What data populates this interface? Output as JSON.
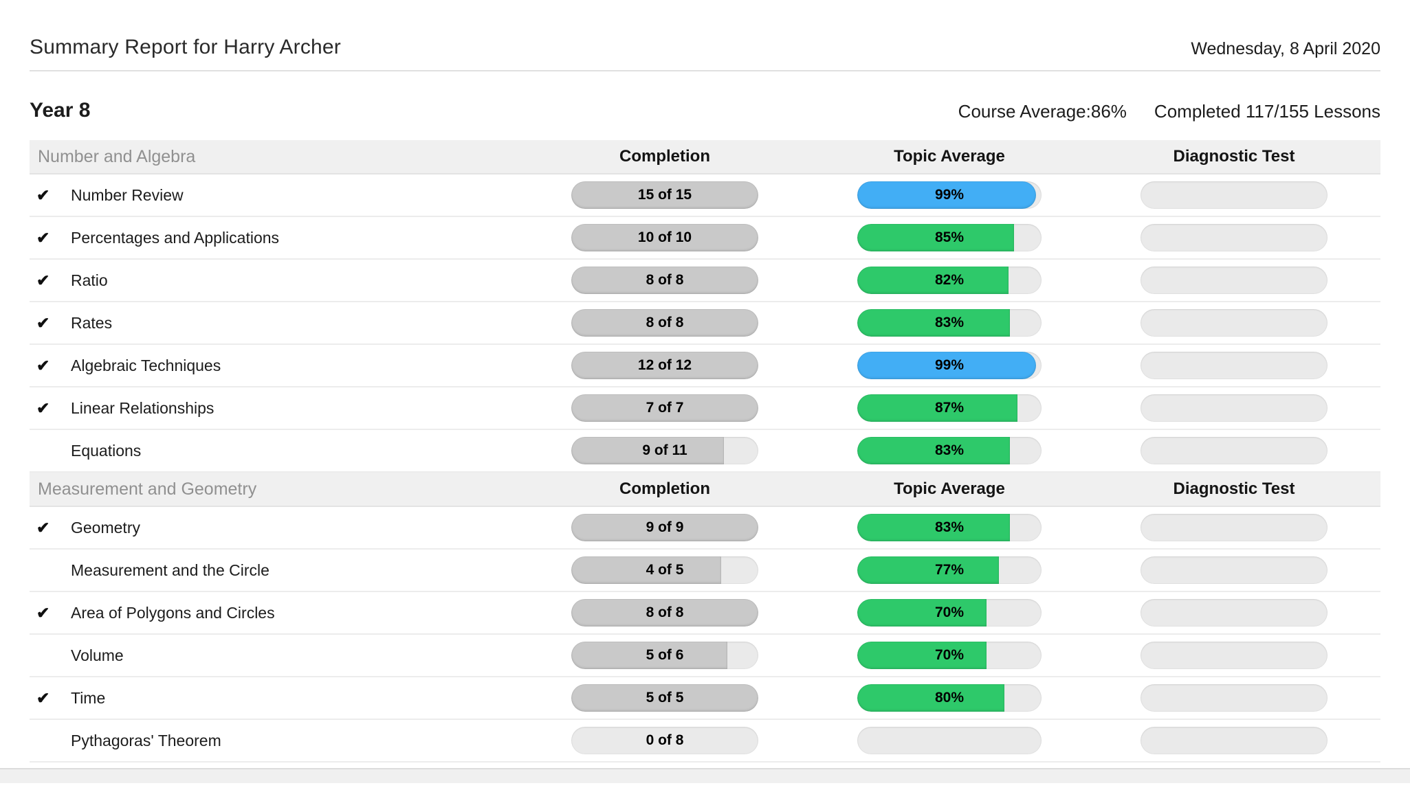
{
  "header": {
    "title": "Summary Report for Harry Archer",
    "date": "Wednesday, 8 April 2020"
  },
  "course": {
    "name": "Year 8",
    "average_label": "Course Average:",
    "average_value": "86%",
    "completed": "Completed 117/155 Lessons"
  },
  "columns": {
    "completion": "Completion",
    "topic_average": "Topic Average",
    "diagnostic_test": "Diagnostic Test"
  },
  "icons": {
    "check": "✔"
  },
  "colors": {
    "green": "#2ec96a",
    "blue": "#42aef5",
    "completion_fill": "#c9c9c9",
    "pill_track": "#eaeaea",
    "section_bg": "#f0f0f0"
  },
  "sections": [
    {
      "name": "Number and Algebra",
      "rows": [
        {
          "topic": "Number Review",
          "completed": true,
          "completion": "15 of 15",
          "completion_pct": 100,
          "average": "99%",
          "average_pct": 99,
          "average_color": "blue"
        },
        {
          "topic": "Percentages and Applications",
          "completed": true,
          "completion": "10 of 10",
          "completion_pct": 100,
          "average": "85%",
          "average_pct": 85,
          "average_color": "green"
        },
        {
          "topic": "Ratio",
          "completed": true,
          "completion": "8 of 8",
          "completion_pct": 100,
          "average": "82%",
          "average_pct": 82,
          "average_color": "green"
        },
        {
          "topic": "Rates",
          "completed": true,
          "completion": "8 of 8",
          "completion_pct": 100,
          "average": "83%",
          "average_pct": 83,
          "average_color": "green"
        },
        {
          "topic": "Algebraic Techniques",
          "completed": true,
          "completion": "12 of 12",
          "completion_pct": 100,
          "average": "99%",
          "average_pct": 99,
          "average_color": "blue"
        },
        {
          "topic": "Linear Relationships",
          "completed": true,
          "completion": "7 of 7",
          "completion_pct": 100,
          "average": "87%",
          "average_pct": 87,
          "average_color": "green"
        },
        {
          "topic": "Equations",
          "completed": false,
          "completion": "9 of 11",
          "completion_pct": 81.8,
          "average": "83%",
          "average_pct": 83,
          "average_color": "green"
        }
      ]
    },
    {
      "name": "Measurement and Geometry",
      "rows": [
        {
          "topic": "Geometry",
          "completed": true,
          "completion": "9 of 9",
          "completion_pct": 100,
          "average": "83%",
          "average_pct": 83,
          "average_color": "green"
        },
        {
          "topic": "Measurement and the Circle",
          "completed": false,
          "completion": "4 of 5",
          "completion_pct": 80,
          "average": "77%",
          "average_pct": 77,
          "average_color": "green"
        },
        {
          "topic": "Area of Polygons and Circles",
          "completed": true,
          "completion": "8 of 8",
          "completion_pct": 100,
          "average": "70%",
          "average_pct": 70,
          "average_color": "green"
        },
        {
          "topic": "Volume",
          "completed": false,
          "completion": "5 of 6",
          "completion_pct": 83.3,
          "average": "70%",
          "average_pct": 70,
          "average_color": "green"
        },
        {
          "topic": "Time",
          "completed": true,
          "completion": "5 of 5",
          "completion_pct": 100,
          "average": "80%",
          "average_pct": 80,
          "average_color": "green"
        },
        {
          "topic": "Pythagoras' Theorem",
          "completed": false,
          "completion": "0 of 8",
          "completion_pct": 0,
          "average": null,
          "average_pct": null,
          "average_color": null
        }
      ]
    }
  ]
}
